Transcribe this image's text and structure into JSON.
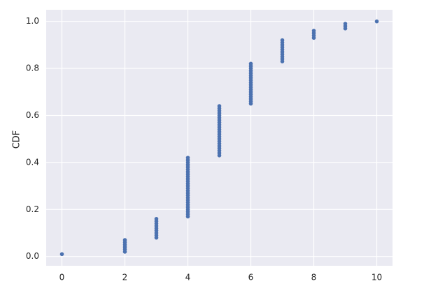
{
  "chart_data": {
    "type": "scatter",
    "ylabel": "CDF",
    "color": "#4c72b0",
    "grid": true,
    "xlim": [
      -0.5,
      10.5
    ],
    "ylim": [
      -0.0395,
      1.0495
    ],
    "xticks": [
      0,
      2,
      4,
      6,
      8,
      10
    ],
    "yticks": [
      {
        "value": 0,
        "label": "0.0"
      },
      0.2,
      0.4,
      0.6,
      0.8,
      {
        "value": 1,
        "label": "1.0"
      }
    ],
    "x": [
      0,
      2,
      2,
      2,
      2,
      2,
      2,
      3,
      3,
      3,
      3,
      3,
      3,
      3,
      3,
      3,
      4,
      4,
      4,
      4,
      4,
      4,
      4,
      4,
      4,
      4,
      4,
      4,
      4,
      4,
      4,
      4,
      4,
      4,
      4,
      4,
      4,
      4,
      4,
      4,
      4,
      4,
      5,
      5,
      5,
      5,
      5,
      5,
      5,
      5,
      5,
      5,
      5,
      5,
      5,
      5,
      5,
      5,
      5,
      5,
      5,
      5,
      5,
      5,
      6,
      6,
      6,
      6,
      6,
      6,
      6,
      6,
      6,
      6,
      6,
      6,
      6,
      6,
      6,
      6,
      6,
      6,
      7,
      7,
      7,
      7,
      7,
      7,
      7,
      7,
      7,
      7,
      8,
      8,
      8,
      8,
      9,
      9,
      9,
      10
    ],
    "values": [
      0.01,
      0.02,
      0.03,
      0.04,
      0.05,
      0.06,
      0.07,
      0.08,
      0.09,
      0.1,
      0.11,
      0.12,
      0.13,
      0.14,
      0.15,
      0.16,
      0.17,
      0.18,
      0.19,
      0.2,
      0.21,
      0.22,
      0.23,
      0.24,
      0.25,
      0.26,
      0.27,
      0.28,
      0.29,
      0.3,
      0.31,
      0.32,
      0.33,
      0.34,
      0.35,
      0.36,
      0.37,
      0.38,
      0.39,
      0.4,
      0.41,
      0.42,
      0.43,
      0.44,
      0.45,
      0.46,
      0.47,
      0.48,
      0.49,
      0.5,
      0.51,
      0.52,
      0.53,
      0.54,
      0.55,
      0.56,
      0.57,
      0.58,
      0.59,
      0.6,
      0.61,
      0.62,
      0.63,
      0.64,
      0.65,
      0.66,
      0.67,
      0.68,
      0.69,
      0.7,
      0.71,
      0.72,
      0.73,
      0.74,
      0.75,
      0.76,
      0.77,
      0.78,
      0.79,
      0.8,
      0.81,
      0.82,
      0.83,
      0.84,
      0.85,
      0.86,
      0.87,
      0.88,
      0.89,
      0.9,
      0.91,
      0.92,
      0.93,
      0.94,
      0.95,
      0.96,
      0.97,
      0.98,
      0.99,
      1.0
    ]
  }
}
